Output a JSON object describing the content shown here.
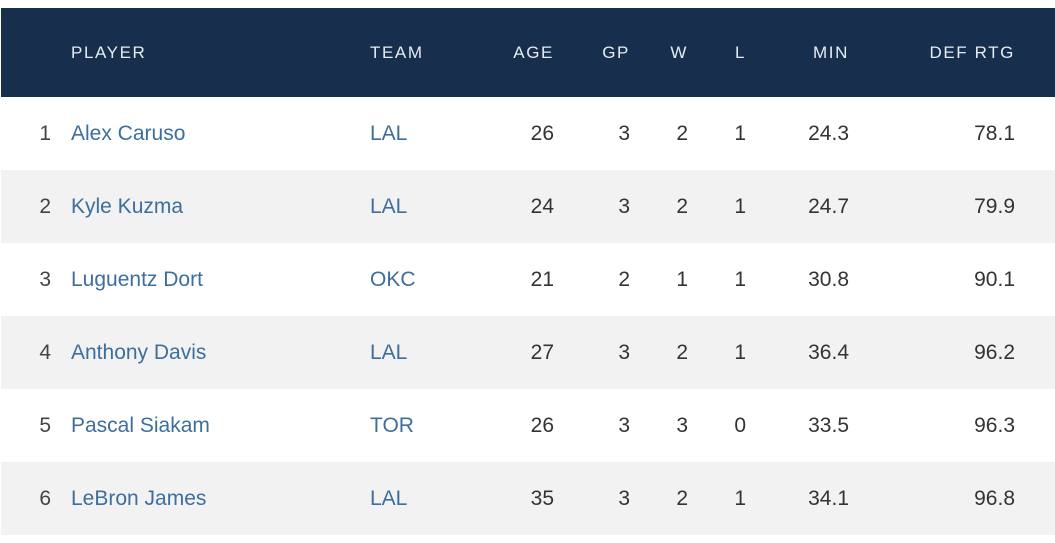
{
  "table": {
    "headers": {
      "player": "PLAYER",
      "team": "TEAM",
      "age": "AGE",
      "gp": "GP",
      "w": "W",
      "l": "L",
      "min": "MIN",
      "def_rtg": "DEF RTG"
    },
    "rows": [
      {
        "rank": "1",
        "player": "Alex Caruso",
        "team": "LAL",
        "age": "26",
        "gp": "3",
        "w": "2",
        "l": "1",
        "min": "24.3",
        "def_rtg": "78.1"
      },
      {
        "rank": "2",
        "player": "Kyle Kuzma",
        "team": "LAL",
        "age": "24",
        "gp": "3",
        "w": "2",
        "l": "1",
        "min": "24.7",
        "def_rtg": "79.9"
      },
      {
        "rank": "3",
        "player": "Luguentz Dort",
        "team": "OKC",
        "age": "21",
        "gp": "2",
        "w": "1",
        "l": "1",
        "min": "30.8",
        "def_rtg": "90.1"
      },
      {
        "rank": "4",
        "player": "Anthony Davis",
        "team": "LAL",
        "age": "27",
        "gp": "3",
        "w": "2",
        "l": "1",
        "min": "36.4",
        "def_rtg": "96.2"
      },
      {
        "rank": "5",
        "player": "Pascal Siakam",
        "team": "TOR",
        "age": "26",
        "gp": "3",
        "w": "3",
        "l": "0",
        "min": "33.5",
        "def_rtg": "96.3"
      },
      {
        "rank": "6",
        "player": "LeBron James",
        "team": "LAL",
        "age": "35",
        "gp": "3",
        "w": "2",
        "l": "1",
        "min": "34.1",
        "def_rtg": "96.8"
      }
    ]
  },
  "colors": {
    "header_bg": "#172e4d",
    "header_text": "#e6ecf3",
    "link": "#3d6e9e",
    "stripe": "#f2f2f2"
  }
}
